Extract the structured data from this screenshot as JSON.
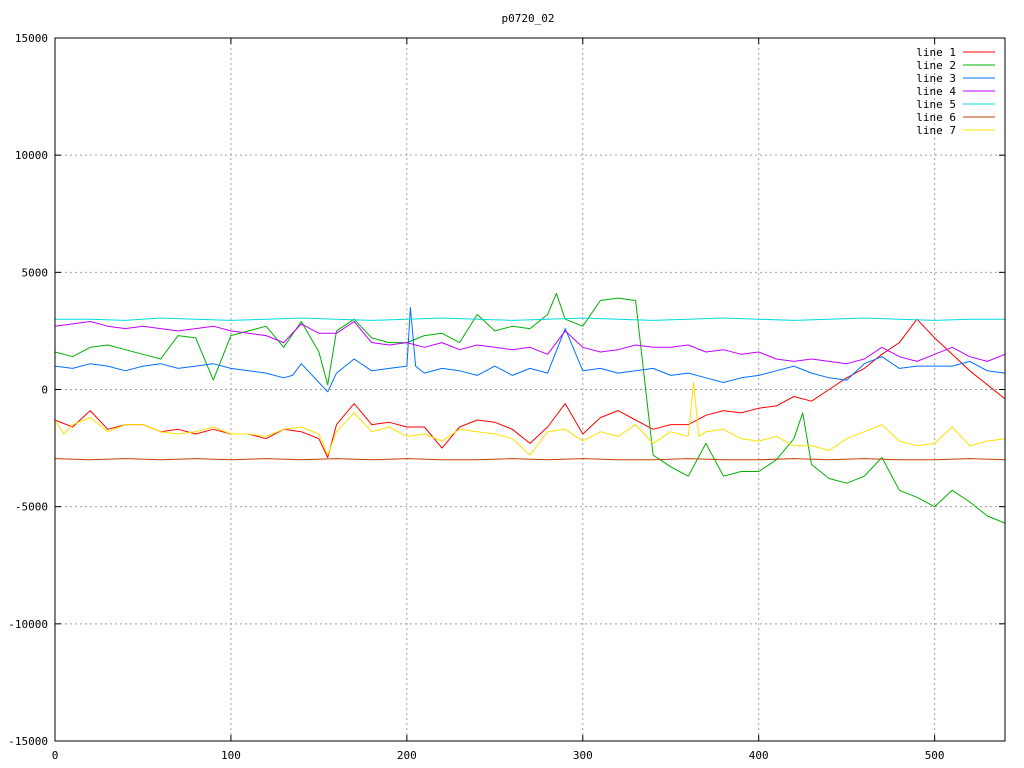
{
  "chart_data": {
    "type": "line",
    "title": "p0720_02",
    "xlabel": "",
    "ylabel": "",
    "xlim": [
      0,
      540
    ],
    "ylim": [
      -15000,
      15000
    ],
    "xticks": [
      0,
      100,
      200,
      300,
      400,
      500
    ],
    "yticks": [
      -15000,
      -10000,
      -5000,
      0,
      5000,
      10000,
      15000
    ],
    "grid": true,
    "legend_position": "top-right",
    "series": [
      {
        "name": "line 1",
        "color": "#ff0000",
        "x": [
          0,
          10,
          20,
          30,
          40,
          50,
          60,
          70,
          80,
          90,
          100,
          110,
          120,
          130,
          140,
          150,
          155,
          160,
          170,
          180,
          190,
          200,
          210,
          220,
          230,
          240,
          250,
          260,
          270,
          280,
          290,
          300,
          310,
          320,
          330,
          340,
          350,
          360,
          370,
          380,
          390,
          400,
          410,
          420,
          430,
          440,
          450,
          460,
          470,
          480,
          490,
          500,
          510,
          520,
          530,
          540
        ],
        "y": [
          -1300,
          -1600,
          -900,
          -1700,
          -1500,
          -1500,
          -1800,
          -1700,
          -1900,
          -1700,
          -1900,
          -1900,
          -2100,
          -1700,
          -1800,
          -2100,
          -2900,
          -1500,
          -600,
          -1500,
          -1400,
          -1600,
          -1600,
          -2500,
          -1600,
          -1300,
          -1400,
          -1700,
          -2300,
          -1600,
          -600,
          -1900,
          -1200,
          -900,
          -1300,
          -1700,
          -1500,
          -1500,
          -1100,
          -900,
          -1000,
          -800,
          -700,
          -300,
          -500,
          0,
          500,
          900,
          1500,
          2000,
          3000,
          2200,
          1500,
          800,
          200,
          -400
        ]
      },
      {
        "name": "line 2",
        "color": "#00b000",
        "x": [
          0,
          10,
          20,
          30,
          40,
          50,
          60,
          70,
          80,
          90,
          100,
          110,
          120,
          130,
          140,
          150,
          155,
          160,
          170,
          180,
          190,
          200,
          210,
          220,
          230,
          240,
          250,
          260,
          270,
          280,
          285,
          290,
          300,
          310,
          320,
          330,
          340,
          350,
          360,
          370,
          380,
          390,
          400,
          410,
          420,
          425,
          430,
          440,
          450,
          460,
          470,
          480,
          490,
          500,
          510,
          520,
          530,
          540
        ],
        "y": [
          1600,
          1400,
          1800,
          1900,
          1700,
          1500,
          1300,
          2300,
          2200,
          400,
          2300,
          2500,
          2700,
          1800,
          2900,
          1600,
          200,
          2500,
          3000,
          2200,
          2000,
          2000,
          2300,
          2400,
          2000,
          3200,
          2500,
          2700,
          2600,
          3200,
          4100,
          3000,
          2700,
          3800,
          3900,
          3800,
          -2800,
          -3300,
          -3700,
          -2300,
          -3700,
          -3500,
          -3500,
          -3000,
          -2100,
          -1000,
          -3200,
          -3800,
          -4000,
          -3700,
          -2900,
          -4300,
          -4600,
          -5000,
          -4300,
          -4800,
          -5400,
          -5700
        ]
      },
      {
        "name": "line 3",
        "color": "#0070ff",
        "x": [
          0,
          10,
          20,
          30,
          40,
          50,
          60,
          70,
          80,
          90,
          100,
          110,
          120,
          130,
          135,
          140,
          150,
          155,
          160,
          170,
          180,
          190,
          200,
          202,
          205,
          210,
          220,
          230,
          240,
          250,
          260,
          270,
          280,
          290,
          300,
          310,
          320,
          330,
          340,
          350,
          360,
          370,
          380,
          390,
          400,
          410,
          420,
          430,
          440,
          450,
          460,
          470,
          480,
          490,
          500,
          510,
          520,
          530,
          540
        ],
        "y": [
          1000,
          900,
          1100,
          1000,
          800,
          1000,
          1100,
          900,
          1000,
          1100,
          900,
          800,
          700,
          500,
          600,
          1100,
          300,
          -100,
          700,
          1300,
          800,
          900,
          1000,
          3500,
          1000,
          700,
          900,
          800,
          600,
          1000,
          600,
          900,
          700,
          2600,
          800,
          900,
          700,
          800,
          900,
          600,
          700,
          500,
          300,
          500,
          600,
          800,
          1000,
          700,
          500,
          400,
          1100,
          1400,
          900,
          1000,
          1000,
          1000,
          1200,
          800,
          700
        ]
      },
      {
        "name": "line 4",
        "color": "#c000ff",
        "x": [
          0,
          10,
          20,
          30,
          40,
          50,
          60,
          70,
          80,
          90,
          100,
          110,
          120,
          130,
          140,
          150,
          160,
          170,
          180,
          190,
          200,
          210,
          220,
          230,
          240,
          250,
          260,
          270,
          280,
          290,
          300,
          310,
          320,
          330,
          340,
          350,
          360,
          370,
          380,
          390,
          400,
          410,
          420,
          430,
          440,
          450,
          460,
          470,
          480,
          490,
          500,
          510,
          520,
          530,
          540
        ],
        "y": [
          2700,
          2800,
          2900,
          2700,
          2600,
          2700,
          2600,
          2500,
          2600,
          2700,
          2500,
          2400,
          2300,
          2000,
          2800,
          2400,
          2400,
          2900,
          2000,
          1900,
          2000,
          1800,
          2000,
          1700,
          1900,
          1800,
          1700,
          1800,
          1500,
          2500,
          1800,
          1600,
          1700,
          1900,
          1800,
          1800,
          1900,
          1600,
          1700,
          1500,
          1600,
          1300,
          1200,
          1300,
          1200,
          1100,
          1300,
          1800,
          1400,
          1200,
          1500,
          1800,
          1400,
          1200,
          1500
        ]
      },
      {
        "name": "line 5",
        "color": "#00dcdc",
        "x": [
          0,
          20,
          40,
          60,
          80,
          100,
          120,
          140,
          160,
          180,
          200,
          220,
          240,
          260,
          280,
          300,
          320,
          340,
          360,
          380,
          400,
          420,
          440,
          460,
          480,
          500,
          520,
          540
        ],
        "y": [
          3000,
          3000,
          2950,
          3050,
          3000,
          2950,
          3000,
          3050,
          3000,
          2950,
          3000,
          3050,
          3000,
          2950,
          3000,
          3050,
          3000,
          2950,
          3000,
          3050,
          3000,
          2950,
          3000,
          3050,
          3000,
          2950,
          3000,
          3000
        ]
      },
      {
        "name": "line 6",
        "color": "#c04000",
        "x": [
          0,
          20,
          40,
          60,
          80,
          100,
          120,
          140,
          160,
          180,
          200,
          220,
          240,
          260,
          280,
          300,
          320,
          340,
          360,
          380,
          400,
          420,
          440,
          460,
          480,
          500,
          520,
          540
        ],
        "y": [
          -2950,
          -3000,
          -2950,
          -3000,
          -2950,
          -3000,
          -2950,
          -3000,
          -2950,
          -3000,
          -2950,
          -3000,
          -3000,
          -2950,
          -3000,
          -2950,
          -3000,
          -3000,
          -2950,
          -3000,
          -3000,
          -2950,
          -3000,
          -2950,
          -3000,
          -3000,
          -2950,
          -3000
        ]
      },
      {
        "name": "line 7",
        "color": "#ffe000",
        "x": [
          0,
          5,
          10,
          20,
          30,
          40,
          50,
          60,
          70,
          80,
          90,
          100,
          110,
          120,
          130,
          140,
          150,
          155,
          160,
          170,
          180,
          190,
          200,
          210,
          220,
          230,
          240,
          250,
          260,
          270,
          280,
          290,
          300,
          310,
          320,
          330,
          340,
          350,
          360,
          363,
          366,
          370,
          380,
          390,
          400,
          410,
          420,
          430,
          440,
          450,
          460,
          470,
          480,
          490,
          500,
          510,
          520,
          530,
          540
        ],
        "y": [
          -1300,
          -1900,
          -1500,
          -1200,
          -1800,
          -1500,
          -1500,
          -1800,
          -1900,
          -1800,
          -1600,
          -1900,
          -1900,
          -2000,
          -1700,
          -1600,
          -1900,
          -2800,
          -1800,
          -1000,
          -1800,
          -1600,
          -2000,
          -1900,
          -2200,
          -1700,
          -1800,
          -1900,
          -2100,
          -2800,
          -1800,
          -1700,
          -2200,
          -1800,
          -2000,
          -1500,
          -2300,
          -1800,
          -2000,
          300,
          -2000,
          -1800,
          -1700,
          -2100,
          -2200,
          -2000,
          -2400,
          -2400,
          -2600,
          -2100,
          -1800,
          -1500,
          -2200,
          -2400,
          -2300,
          -1600,
          -2400,
          -2200,
          -2100
        ]
      }
    ]
  }
}
